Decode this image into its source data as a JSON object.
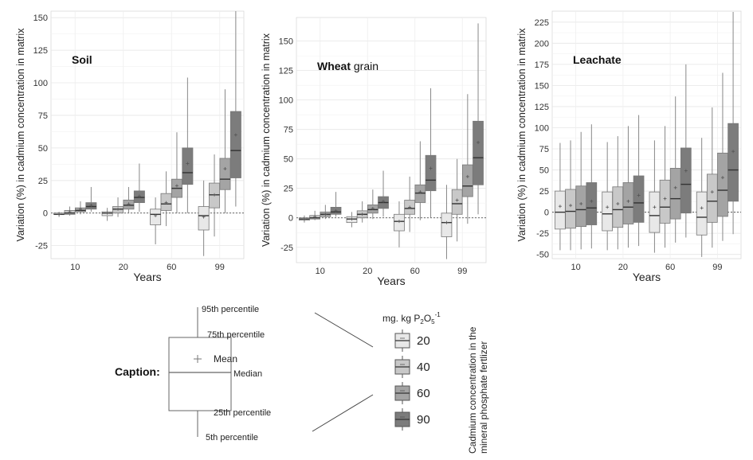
{
  "chart_data": [
    {
      "type": "box",
      "title": "Soil",
      "title_bold_part": "Soil",
      "title_rest": "",
      "ylabel": "Variation (%) in cadmium concentration in matrix",
      "xlabel": "Years",
      "categories": [
        "10",
        "20",
        "60",
        "99"
      ],
      "ylim": [
        -35,
        155
      ],
      "yticks": [
        -25,
        0,
        25,
        50,
        75,
        100,
        125,
        150
      ],
      "grid": true,
      "series": [
        {
          "name": "20",
          "color": "#e8e8e8",
          "boxes": [
            {
              "p5": -3,
              "q1": -1,
              "median": -1,
              "q3": 0,
              "p95": 1,
              "mean": -1
            },
            {
              "p5": -6,
              "q1": -2,
              "median": 0,
              "q3": 1,
              "p95": 4,
              "mean": 0
            },
            {
              "p5": -24,
              "q1": -9,
              "median": -1,
              "q3": 3,
              "p95": 12,
              "mean": -2
            },
            {
              "p5": -33,
              "q1": -13,
              "median": -2,
              "q3": 5,
              "p95": 25,
              "mean": -3
            }
          ]
        },
        {
          "name": "40",
          "color": "#c8c8c8",
          "boxes": [
            {
              "p5": -2,
              "q1": -1,
              "median": 0,
              "q3": 2,
              "p95": 5,
              "mean": 1
            },
            {
              "p5": -3,
              "q1": 0,
              "median": 3,
              "q3": 5,
              "p95": 12,
              "mean": 3
            },
            {
              "p5": -10,
              "q1": 2,
              "median": 7,
              "q3": 15,
              "p95": 32,
              "mean": 8
            },
            {
              "p5": -18,
              "q1": 4,
              "median": 14,
              "q3": 23,
              "p95": 45,
              "mean": 14
            }
          ]
        },
        {
          "name": "60",
          "color": "#a4a4a4",
          "boxes": [
            {
              "p5": -1,
              "q1": 1,
              "median": 2,
              "q3": 4,
              "p95": 9,
              "mean": 3
            },
            {
              "p5": 0,
              "q1": 3,
              "median": 6,
              "q3": 10,
              "p95": 20,
              "mean": 7
            },
            {
              "p5": 0,
              "q1": 12,
              "median": 19,
              "q3": 26,
              "p95": 62,
              "mean": 21
            },
            {
              "p5": 0,
              "q1": 18,
              "median": 26,
              "q3": 42,
              "p95": 95,
              "mean": 34
            }
          ]
        },
        {
          "name": "90",
          "color": "#7c7c7c",
          "boxes": [
            {
              "p5": 1,
              "q1": 3,
              "median": 5,
              "q3": 8,
              "p95": 20,
              "mean": 6
            },
            {
              "p5": 1,
              "q1": 8,
              "median": 12,
              "q3": 17,
              "p95": 38,
              "mean": 13
            },
            {
              "p5": 0,
              "q1": 22,
              "median": 31,
              "q3": 50,
              "p95": 104,
              "mean": 38
            },
            {
              "p5": 5,
              "q1": 27,
              "median": 48,
              "q3": 78,
              "p95": 155,
              "mean": 60
            }
          ]
        }
      ]
    },
    {
      "type": "box",
      "title": "Wheat grain",
      "title_bold_part": "Wheat",
      "title_rest": " grain",
      "ylabel": "Variation (%) in cadmium concentration in matrix",
      "xlabel": "Years",
      "categories": [
        "10",
        "20",
        "60",
        "99"
      ],
      "ylim": [
        -38,
        170
      ],
      "yticks": [
        -25,
        0,
        25,
        50,
        75,
        100,
        125,
        150
      ],
      "grid": true,
      "series": [
        {
          "name": "20",
          "color": "#e8e8e8",
          "boxes": [
            {
              "p5": -4,
              "q1": -2,
              "median": -1,
              "q3": 0,
              "p95": 2,
              "mean": -1
            },
            {
              "p5": -8,
              "q1": -4,
              "median": -1,
              "q3": 1,
              "p95": 5,
              "mean": -1
            },
            {
              "p5": -25,
              "q1": -11,
              "median": -3,
              "q3": 3,
              "p95": 14,
              "mean": -3
            },
            {
              "p5": -35,
              "q1": -16,
              "median": -4,
              "q3": 4,
              "p95": 28,
              "mean": -4
            }
          ]
        },
        {
          "name": "40",
          "color": "#c8c8c8",
          "boxes": [
            {
              "p5": -2,
              "q1": -1,
              "median": 0,
              "q3": 2,
              "p95": 6,
              "mean": 1
            },
            {
              "p5": -4,
              "q1": 0,
              "median": 3,
              "q3": 6,
              "p95": 14,
              "mean": 3
            },
            {
              "p5": -12,
              "q1": 3,
              "median": 8,
              "q3": 15,
              "p95": 35,
              "mean": 9
            },
            {
              "p5": -20,
              "q1": 3,
              "median": 12,
              "q3": 24,
              "p95": 50,
              "mean": 15
            }
          ]
        },
        {
          "name": "60",
          "color": "#a4a4a4",
          "boxes": [
            {
              "p5": -1,
              "q1": 1,
              "median": 3,
              "q3": 5,
              "p95": 11,
              "mean": 3
            },
            {
              "p5": -1,
              "q1": 4,
              "median": 7,
              "q3": 11,
              "p95": 24,
              "mean": 8
            },
            {
              "p5": -2,
              "q1": 13,
              "median": 21,
              "q3": 28,
              "p95": 65,
              "mean": 22
            },
            {
              "p5": -5,
              "q1": 18,
              "median": 27,
              "q3": 45,
              "p95": 105,
              "mean": 35
            }
          ]
        },
        {
          "name": "90",
          "color": "#7c7c7c",
          "boxes": [
            {
              "p5": 1,
              "q1": 3,
              "median": 5,
              "q3": 9,
              "p95": 22,
              "mean": 6
            },
            {
              "p5": 1,
              "q1": 8,
              "median": 13,
              "q3": 18,
              "p95": 40,
              "mean": 14
            },
            {
              "p5": 0,
              "q1": 23,
              "median": 32,
              "q3": 53,
              "p95": 110,
              "mean": 42
            },
            {
              "p5": 3,
              "q1": 28,
              "median": 51,
              "q3": 82,
              "p95": 165,
              "mean": 64
            }
          ]
        }
      ]
    },
    {
      "type": "box",
      "title": "Leachate",
      "title_bold_part": "Leachate",
      "title_rest": "",
      "ylabel": "Variation (%) in cadmium concentration in matrix",
      "xlabel": "Years",
      "categories": [
        "10",
        "20",
        "60",
        "99"
      ],
      "ylim": [
        -55,
        238
      ],
      "yticks": [
        -50,
        -25,
        0,
        25,
        50,
        75,
        100,
        125,
        150,
        175,
        200,
        225
      ],
      "grid": true,
      "series": [
        {
          "name": "20",
          "color": "#e8e8e8",
          "boxes": [
            {
              "p5": -45,
              "q1": -20,
              "median": 0,
              "q3": 25,
              "p95": 82,
              "mean": 7
            },
            {
              "p5": -45,
              "q1": -22,
              "median": -2,
              "q3": 24,
              "p95": 83,
              "mean": 6
            },
            {
              "p5": -48,
              "q1": -24,
              "median": -4,
              "q3": 24,
              "p95": 85,
              "mean": 6
            },
            {
              "p5": -53,
              "q1": -27,
              "median": -6,
              "q3": 24,
              "p95": 88,
              "mean": 5
            }
          ]
        },
        {
          "name": "40",
          "color": "#c8c8c8",
          "boxes": [
            {
              "p5": -45,
              "q1": -19,
              "median": 1,
              "q3": 27,
              "p95": 85,
              "mean": 8
            },
            {
              "p5": -44,
              "q1": -18,
              "median": 3,
              "q3": 30,
              "p95": 90,
              "mean": 10
            },
            {
              "p5": -42,
              "q1": -13,
              "median": 6,
              "q3": 38,
              "p95": 102,
              "mean": 16
            },
            {
              "p5": -42,
              "q1": -12,
              "median": 13,
              "q3": 45,
              "p95": 124,
              "mean": 24
            }
          ]
        },
        {
          "name": "60",
          "color": "#a4a4a4",
          "boxes": [
            {
              "p5": -44,
              "q1": -17,
              "median": 3,
              "q3": 31,
              "p95": 95,
              "mean": 10
            },
            {
              "p5": -42,
              "q1": -14,
              "median": 6,
              "q3": 35,
              "p95": 102,
              "mean": 13
            },
            {
              "p5": -36,
              "q1": -8,
              "median": 16,
              "q3": 52,
              "p95": 137,
              "mean": 29
            },
            {
              "p5": -34,
              "q1": -5,
              "median": 26,
              "q3": 70,
              "p95": 165,
              "mean": 41
            }
          ]
        },
        {
          "name": "90",
          "color": "#7c7c7c",
          "boxes": [
            {
              "p5": -43,
              "q1": -15,
              "median": 5,
              "q3": 35,
              "p95": 104,
              "mean": 13
            },
            {
              "p5": -40,
              "q1": -12,
              "median": 11,
              "q3": 43,
              "p95": 115,
              "mean": 20
            },
            {
              "p5": -30,
              "q1": -1,
              "median": 33,
              "q3": 76,
              "p95": 175,
              "mean": 49
            },
            {
              "p5": -26,
              "q1": 13,
              "median": 50,
              "q3": 105,
              "p95": 237,
              "mean": 72
            }
          ]
        }
      ]
    }
  ],
  "caption": {
    "label": "Caption:",
    "p95": "95th percentile",
    "p75": "75th percentile",
    "mean": "Mean",
    "median": "Median",
    "p25": "25th percentile",
    "p5": "5th percentile"
  },
  "legend": {
    "unit_prefix": "mg. kg P",
    "unit_sub1": "2",
    "unit_o": "O",
    "unit_sub2": "5",
    "unit_sup": "-1",
    "items": [
      {
        "label": "20",
        "color": "#e8e8e8"
      },
      {
        "label": "40",
        "color": "#c8c8c8"
      },
      {
        "label": "60",
        "color": "#a4a4a4"
      },
      {
        "label": "90",
        "color": "#7c7c7c"
      }
    ],
    "side_title_line1": "Cadmium concentration in the",
    "side_title_line2": "mineral phosphate fertlizer"
  }
}
